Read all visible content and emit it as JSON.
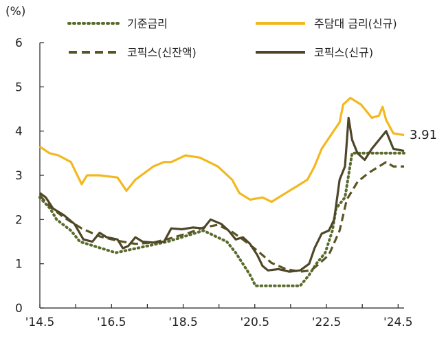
{
  "chart_data": {
    "type": "line",
    "unit": "(%)",
    "x_ticks": [
      "'14.5",
      "'16.5",
      "'18.5",
      "'20.5",
      "'22.5",
      "'24.5"
    ],
    "y_ticks": [
      "0",
      "1",
      "2",
      "3",
      "4",
      "5",
      "6"
    ],
    "ylim": [
      0,
      6
    ],
    "x_range": [
      2014.333,
      2024.5
    ],
    "end_label": "3.91",
    "series": [
      {
        "name": "기준금리",
        "color": "#5a6b2e",
        "style": "dotted",
        "x": [
          2014.33,
          2014.62,
          2014.8,
          2015.2,
          2015.45,
          2016.45,
          2017.9,
          2018.9,
          2019.55,
          2019.8,
          2020.2,
          2020.35,
          2021.6,
          2021.85,
          2022.05,
          2022.3,
          2022.5,
          2022.6,
          2022.85,
          2023.05,
          2024.5
        ],
        "y": [
          2.5,
          2.25,
          2.0,
          1.75,
          1.5,
          1.25,
          1.5,
          1.75,
          1.5,
          1.25,
          0.75,
          0.5,
          0.5,
          0.75,
          1.0,
          1.25,
          1.75,
          2.25,
          2.5,
          3.5,
          3.5
        ]
      },
      {
        "name": "주담대 금리(신규)",
        "color": "#f3b81e",
        "style": "solid",
        "x": [
          2014.33,
          2014.6,
          2014.85,
          2015.2,
          2015.5,
          2015.65,
          2016.0,
          2016.5,
          2016.75,
          2017.0,
          2017.5,
          2017.8,
          2018.0,
          2018.4,
          2018.8,
          2019.3,
          2019.7,
          2019.9,
          2020.2,
          2020.55,
          2020.8,
          2021.2,
          2021.5,
          2021.8,
          2022.0,
          2022.2,
          2022.45,
          2022.7,
          2022.8,
          2023.0,
          2023.3,
          2023.6,
          2023.8,
          2023.9,
          2024.0,
          2024.2,
          2024.5
        ],
        "y": [
          3.65,
          3.5,
          3.45,
          3.3,
          2.8,
          3.0,
          3.0,
          2.95,
          2.65,
          2.9,
          3.2,
          3.3,
          3.3,
          3.45,
          3.4,
          3.2,
          2.9,
          2.6,
          2.45,
          2.5,
          2.4,
          2.6,
          2.75,
          2.9,
          3.2,
          3.6,
          3.9,
          4.2,
          4.6,
          4.75,
          4.6,
          4.3,
          4.35,
          4.55,
          4.25,
          3.95,
          3.91
        ]
      },
      {
        "name": "코픽스(신잔액)",
        "color": "#5b5523",
        "style": "dashed",
        "x": [
          2014.33,
          2014.6,
          2015.0,
          2015.5,
          2016.0,
          2016.5,
          2017.0,
          2017.5,
          2018.0,
          2018.5,
          2018.9,
          2019.3,
          2019.7,
          2020.0,
          2020.4,
          2020.8,
          2021.2,
          2021.6,
          2021.9,
          2022.1,
          2022.4,
          2022.7,
          2022.9,
          2023.2,
          2023.5,
          2023.8,
          2024.0,
          2024.2,
          2024.5
        ],
        "y": [
          2.55,
          2.3,
          2.05,
          1.8,
          1.62,
          1.52,
          1.45,
          1.48,
          1.58,
          1.7,
          1.82,
          1.88,
          1.72,
          1.55,
          1.3,
          1.02,
          0.88,
          0.82,
          0.85,
          0.98,
          1.2,
          1.75,
          2.45,
          2.85,
          3.05,
          3.2,
          3.3,
          3.2,
          3.2
        ]
      },
      {
        "name": "코픽스(신규)",
        "color": "#4e4628",
        "style": "solid",
        "x": [
          2014.33,
          2014.5,
          2014.7,
          2015.0,
          2015.3,
          2015.55,
          2015.8,
          2016.0,
          2016.2,
          2016.5,
          2016.65,
          2016.8,
          2017.0,
          2017.2,
          2017.5,
          2017.8,
          2018.0,
          2018.3,
          2018.6,
          2018.9,
          2019.1,
          2019.4,
          2019.6,
          2019.8,
          2020.0,
          2020.2,
          2020.4,
          2020.55,
          2020.7,
          2021.0,
          2021.3,
          2021.6,
          2021.85,
          2022.0,
          2022.2,
          2022.4,
          2022.55,
          2022.7,
          2022.85,
          2022.95,
          2023.05,
          2023.2,
          2023.4,
          2023.6,
          2023.75,
          2023.9,
          2024.0,
          2024.2,
          2024.5
        ],
        "y": [
          2.6,
          2.5,
          2.25,
          2.1,
          1.9,
          1.55,
          1.5,
          1.7,
          1.6,
          1.55,
          1.35,
          1.4,
          1.6,
          1.5,
          1.48,
          1.5,
          1.8,
          1.78,
          1.82,
          1.8,
          2.0,
          1.9,
          1.75,
          1.55,
          1.6,
          1.45,
          1.2,
          0.95,
          0.85,
          0.88,
          0.82,
          0.85,
          1.0,
          1.35,
          1.68,
          1.75,
          2.0,
          2.9,
          3.2,
          4.3,
          3.8,
          3.5,
          3.35,
          3.6,
          3.75,
          3.9,
          4.0,
          3.6,
          3.55
        ]
      }
    ]
  }
}
